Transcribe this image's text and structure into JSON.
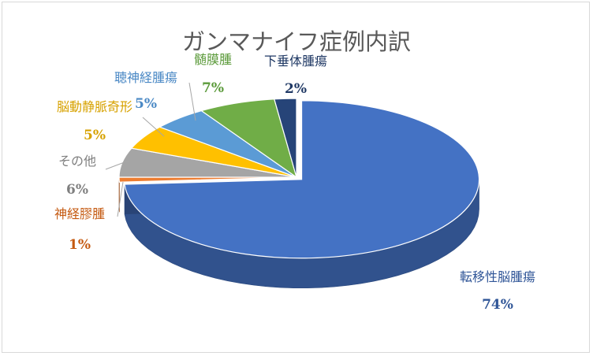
{
  "chart_data": {
    "type": "pie",
    "title": "ガンマナイフ症例内訳",
    "categories": [
      "転移性脳腫瘍",
      "神経膠腫",
      "その他",
      "脳動静脈奇形",
      "聴神経腫瘍",
      "髄膜腫",
      "下垂体腫瘍"
    ],
    "values": [
      74,
      1,
      6,
      5,
      5,
      7,
      2
    ],
    "labels": [
      "74%",
      "1%",
      "6%",
      "5%",
      "5%",
      "7%",
      "2%"
    ],
    "colors": [
      "#4472c4",
      "#ed7d31",
      "#a5a5a5",
      "#ffc000",
      "#5b9bd5",
      "#70ad47",
      "#264478"
    ],
    "label_colors": [
      "#2f5597",
      "#c55a11",
      "#7f7f7f",
      "#d7a200",
      "#4b89c5",
      "#5b9a3a",
      "#1f3864"
    ],
    "style": "3d-pie",
    "exploded_first_slice": true,
    "legend": "none"
  }
}
